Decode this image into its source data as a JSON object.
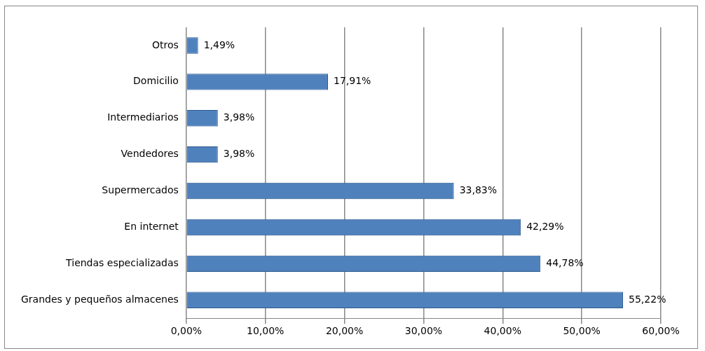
{
  "chart_data": {
    "type": "bar",
    "orientation": "horizontal",
    "categories": [
      "Otros",
      "Domicilio",
      "Intermediarios",
      "Vendedores",
      "Supermercados",
      "En internet",
      "Tiendas especializadas",
      "Grandes y pequeños almacenes"
    ],
    "values": [
      1.49,
      17.91,
      3.98,
      3.98,
      33.83,
      42.29,
      44.78,
      55.22
    ],
    "value_labels": [
      "1,49%",
      "17,91%",
      "3,98%",
      "3,98%",
      "33,83%",
      "42,29%",
      "44,78%",
      "55,22%"
    ],
    "color": "#4f81bd",
    "xlim": [
      0,
      60
    ],
    "xticks": [
      {
        "value": 0,
        "label": "0,00%"
      },
      {
        "value": 10,
        "label": "10,00%"
      },
      {
        "value": 20,
        "label": "20,00%"
      },
      {
        "value": 30,
        "label": "30,00%"
      },
      {
        "value": 40,
        "label": "40,00%"
      },
      {
        "value": 50,
        "label": "50,00%"
      },
      {
        "value": 60,
        "label": "60,00%"
      }
    ],
    "grid": "x"
  }
}
